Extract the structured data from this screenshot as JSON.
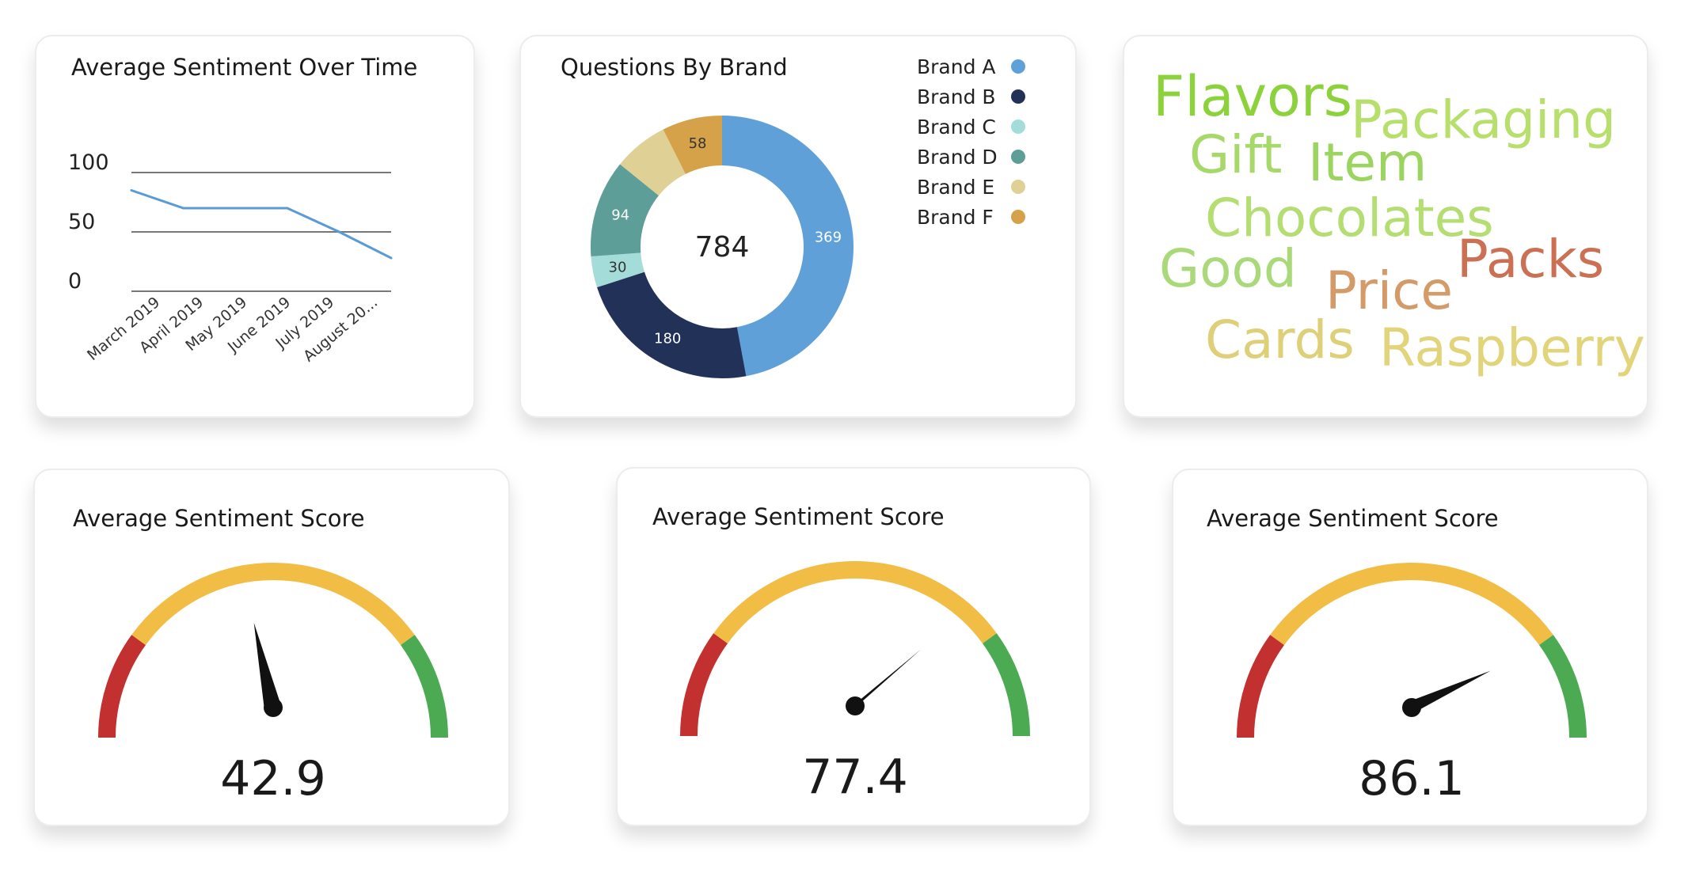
{
  "line_card": {
    "title": "Average Sentiment Over Time"
  },
  "donut_card": {
    "title": "Questions By Brand"
  },
  "gauges": [
    {
      "title": "Average Sentiment Score",
      "value": "42.9"
    },
    {
      "title": "Average Sentiment Score",
      "value": "77.4"
    },
    {
      "title": "Average Sentiment Score",
      "value": "86.1"
    }
  ],
  "chart_data": [
    {
      "type": "line",
      "title": "Average Sentiment Over Time",
      "categories": [
        "March 2019",
        "April 2019",
        "May 2019",
        "June 2019",
        "July 2019",
        "August 20..."
      ],
      "series": [
        {
          "values": [
            85,
            70,
            70,
            70,
            50,
            28
          ],
          "color": "#5b9bd5"
        }
      ],
      "y_ticks": [
        0,
        50,
        100
      ],
      "ylim": [
        0,
        100
      ],
      "grid": true
    },
    {
      "type": "pie",
      "variant": "donut",
      "title": "Questions By Brand",
      "total": "784",
      "categories": [
        "Brand A",
        "Brand B",
        "Brand C",
        "Brand D",
        "Brand E",
        "Brand F"
      ],
      "values": [
        369,
        180,
        30,
        94,
        53,
        58
      ],
      "shown_labels": [
        "369",
        "180",
        "30",
        "94",
        "",
        "58"
      ],
      "colors": [
        "#5fa0d8",
        "#223157",
        "#a3dcd8",
        "#5e9e98",
        "#dfd195",
        "#d5a24a"
      ],
      "label_colors": [
        "#ffffff",
        "#ffffff",
        "#333333",
        "#ffffff",
        "#333333",
        "#333333"
      ],
      "legend_position": "right"
    },
    {
      "type": "word-cloud",
      "words": [
        {
          "text": "Flavors",
          "color": "#8cd23c"
        },
        {
          "text": "Packaging",
          "color": "#b6df6c"
        },
        {
          "text": "Gift",
          "color": "#a6d96a"
        },
        {
          "text": "Item",
          "color": "#9cd460"
        },
        {
          "text": "Chocolates",
          "color": "#b4dd72"
        },
        {
          "text": "Good",
          "color": "#a9d978"
        },
        {
          "text": "Packs",
          "color": "#cc7054"
        },
        {
          "text": "Price",
          "color": "#d49a68"
        },
        {
          "text": "Cards",
          "color": "#ddd079"
        },
        {
          "text": "Raspberry",
          "color": "#e2d47a"
        }
      ]
    },
    {
      "type": "gauge",
      "series": [
        {
          "value": 42.9
        },
        {
          "value": 77.4
        },
        {
          "value": 86.1
        }
      ],
      "range": [
        0,
        100
      ],
      "bands": [
        {
          "to": 20,
          "color": "#c2302f"
        },
        {
          "to": 80,
          "color": "#f2bd44"
        },
        {
          "to": 100,
          "color": "#4caa52"
        }
      ]
    }
  ]
}
